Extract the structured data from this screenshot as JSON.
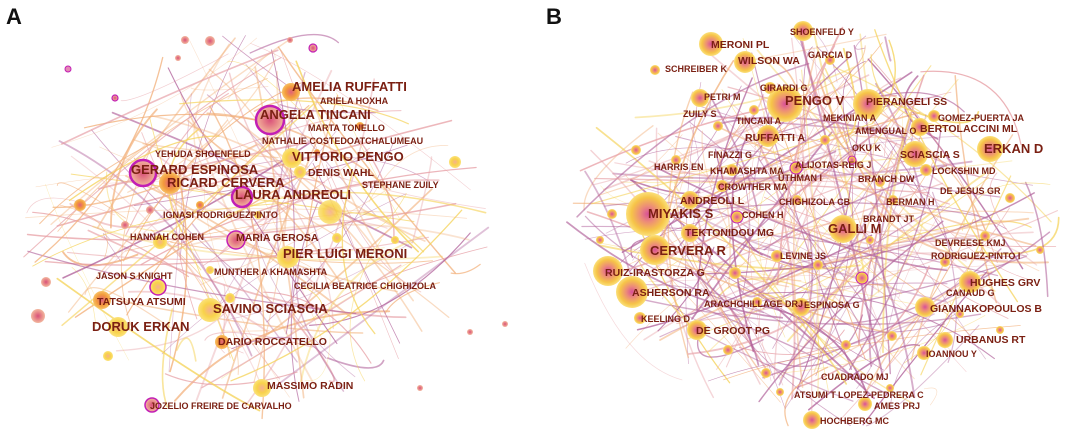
{
  "colors": {
    "label": "#7a1f12",
    "node_yellow": "#f4c430",
    "node_orange": "#f39a3c",
    "node_pink": "#e58aa0",
    "node_ring": "#c21fb5",
    "edge_purple": "#b0609a",
    "edge_pink": "#e7a0a6",
    "edge_orange": "#f2b07a",
    "edge_yellow": "#f5d35a"
  },
  "panel_a": {
    "letter": "A",
    "labels": [
      {
        "text": "AMELIA RUFFATTI",
        "size": "l"
      },
      {
        "text": "ARIELA HOXHA",
        "size": "s"
      },
      {
        "text": "ANGELA TINCANI",
        "size": "l"
      },
      {
        "text": "MARTA TONELLO",
        "size": "s"
      },
      {
        "text": "NATHALIE COSTEDOATCHALUMEAU",
        "size": "s"
      },
      {
        "text": "YEHUDA SHOENFELD",
        "size": "s"
      },
      {
        "text": "VITTORIO PENGO",
        "size": "l"
      },
      {
        "text": "GERARD ESPINOSA",
        "size": "l"
      },
      {
        "text": "DENIS WAHL",
        "size": "m"
      },
      {
        "text": "RICARD CERVERA",
        "size": "l"
      },
      {
        "text": "STEPHANE ZUILY",
        "size": "s"
      },
      {
        "text": "LAURA ANDREOLI",
        "size": "l"
      },
      {
        "text": "IGNASI RODRIGUEZPINTO",
        "size": "s"
      },
      {
        "text": "HANNAH COHEN",
        "size": "s"
      },
      {
        "text": "MARIA GEROSA",
        "size": "m"
      },
      {
        "text": "PIER LUIGI MERONI",
        "size": "l"
      },
      {
        "text": "JASON S KNIGHT",
        "size": "s"
      },
      {
        "text": "MUNTHER A KHAMASHTA",
        "size": "s"
      },
      {
        "text": "CECILIA BEATRICE CHIGHIZOLA",
        "size": "s"
      },
      {
        "text": "TATSUYA ATSUMI",
        "size": "m"
      },
      {
        "text": "SAVINO SCIASCIA",
        "size": "l"
      },
      {
        "text": "DORUK ERKAN",
        "size": "l"
      },
      {
        "text": "DARIO ROCCATELLO",
        "size": "m"
      },
      {
        "text": "MASSIMO RADIN",
        "size": "m"
      },
      {
        "text": "JOZELIO FREIRE DE CARVALHO",
        "size": "s"
      }
    ]
  },
  "panel_b": {
    "letter": "B",
    "labels": [
      {
        "text": "SHOENFELD Y",
        "size": "s"
      },
      {
        "text": "MERONI PL",
        "size": "m"
      },
      {
        "text": "GARCIA D",
        "size": "s"
      },
      {
        "text": "SCHREIBER K",
        "size": "s"
      },
      {
        "text": "WILSON WA",
        "size": "m"
      },
      {
        "text": "GIRARDI G",
        "size": "s"
      },
      {
        "text": "PETRI M",
        "size": "s"
      },
      {
        "text": "PENGO V",
        "size": "l"
      },
      {
        "text": "PIERANGELI SS",
        "size": "m"
      },
      {
        "text": "ZUILY S",
        "size": "s"
      },
      {
        "text": "MEKINIAN A",
        "size": "s"
      },
      {
        "text": "GOMEZ-PUERTA JA",
        "size": "s"
      },
      {
        "text": "TINCANI A",
        "size": "s"
      },
      {
        "text": "AMENGUAL O",
        "size": "s"
      },
      {
        "text": "BERTOLACCINI ML",
        "size": "m"
      },
      {
        "text": "RUFFATTI A",
        "size": "m"
      },
      {
        "text": "OKU K",
        "size": "s"
      },
      {
        "text": "SCIASCIA S",
        "size": "m"
      },
      {
        "text": "ERKAN D",
        "size": "l"
      },
      {
        "text": "FINAZZI G",
        "size": "s"
      },
      {
        "text": "HARRIS EN",
        "size": "s"
      },
      {
        "text": "ALIJOTAS-REIG J",
        "size": "s"
      },
      {
        "text": "LOCKSHIN MD",
        "size": "s"
      },
      {
        "text": "KHAMASHTA MA",
        "size": "s"
      },
      {
        "text": "UTHMAN I",
        "size": "s"
      },
      {
        "text": "BRANCH DW",
        "size": "s"
      },
      {
        "text": "CROWTHER MA",
        "size": "s"
      },
      {
        "text": "DE JESUS GR",
        "size": "s"
      },
      {
        "text": "ANDREOLI L",
        "size": "m"
      },
      {
        "text": "CHIGHIZOLA CB",
        "size": "s"
      },
      {
        "text": "BERMAN H",
        "size": "s"
      },
      {
        "text": "MIYAKIS S",
        "size": "l"
      },
      {
        "text": "COHEN H",
        "size": "s"
      },
      {
        "text": "BRANDT JT",
        "size": "s"
      },
      {
        "text": "TEKTONIDOU MG",
        "size": "m"
      },
      {
        "text": "GALLI M",
        "size": "l"
      },
      {
        "text": "DEVREESE KMJ",
        "size": "s"
      },
      {
        "text": "CERVERA R",
        "size": "l"
      },
      {
        "text": "LEVINE JS",
        "size": "s"
      },
      {
        "text": "RODRIGUEZ-PINTO I",
        "size": "s"
      },
      {
        "text": "RUIZ-IRASTORZA G",
        "size": "m"
      },
      {
        "text": "HUGHES GRV",
        "size": "m"
      },
      {
        "text": "ASHERSON RA",
        "size": "m"
      },
      {
        "text": "CANAUD G",
        "size": "s"
      },
      {
        "text": "ARACHCHILLAGE DRJ",
        "size": "s"
      },
      {
        "text": "ESPINOSA G",
        "size": "s"
      },
      {
        "text": "GIANNAKOPOULOS B",
        "size": "m"
      },
      {
        "text": "KEELING D",
        "size": "s"
      },
      {
        "text": "DE GROOT PG",
        "size": "m"
      },
      {
        "text": "URBANUS RT",
        "size": "m"
      },
      {
        "text": "IOANNOU Y",
        "size": "s"
      },
      {
        "text": "CUADRADO MJ",
        "size": "s"
      },
      {
        "text": "ATSUMI T",
        "size": "s"
      },
      {
        "text": "LOPEZ-PEDRERA C",
        "size": "s"
      },
      {
        "text": "AMES PRJ",
        "size": "s"
      },
      {
        "text": "HOCHBERG MC",
        "size": "s"
      }
    ]
  }
}
